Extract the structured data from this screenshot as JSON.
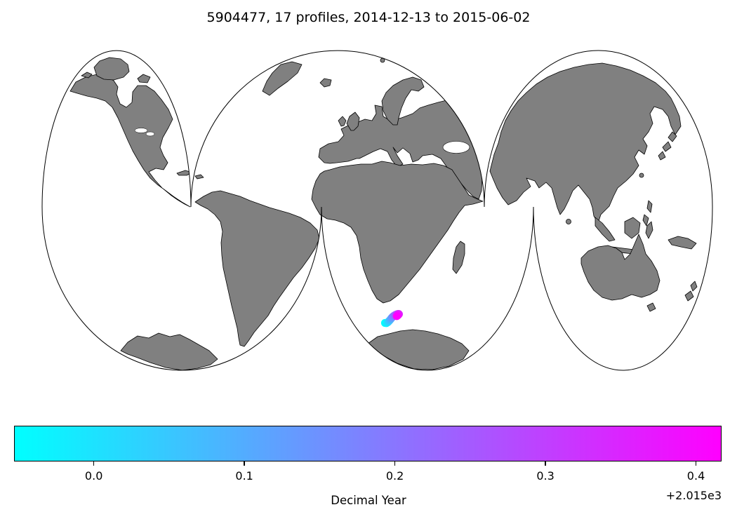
{
  "title": "5904477, 17 profiles, 2014-12-13 to 2015-06-02",
  "chart_data": {
    "type": "scatter",
    "title": "5904477, 17 profiles, 2014-12-13 to 2015-06-02",
    "float_id": "5904477",
    "n_profiles": 17,
    "date_range": "2014-12-13 to 2015-06-02",
    "projection": "interrupted world map, gray land, white ocean",
    "land_color": "#808080",
    "ocean_color": "#ffffff",
    "colorbar": {
      "label": "Decimal Year",
      "offset_text": "+2.015e3",
      "vmin": -0.053,
      "vmax": 0.417,
      "ticks": [
        0.0,
        0.1,
        0.2,
        0.3,
        0.4
      ],
      "tick_labels": [
        "0.0",
        "0.1",
        "0.2",
        "0.3",
        "0.4"
      ],
      "cmap": "cool",
      "cmap_start": "#00ffff",
      "cmap_end": "#ff00ff",
      "orientation": "horizontal"
    },
    "series": [
      {
        "name": "profile-positions",
        "note": "x,y are pixel positions on map (Southern Ocean south of Africa); v is decimal-year offset from 2015",
        "points": [
          {
            "x": 548.5,
            "y": 460.5,
            "v": -0.053
          },
          {
            "x": 550.5,
            "y": 460.8,
            "v": -0.024
          },
          {
            "x": 552.5,
            "y": 459.6,
            "v": 0.006
          },
          {
            "x": 554.0,
            "y": 458.0,
            "v": 0.035
          },
          {
            "x": 555.5,
            "y": 456.4,
            "v": 0.065
          },
          {
            "x": 556.8,
            "y": 454.8,
            "v": 0.094
          },
          {
            "x": 558.0,
            "y": 453.2,
            "v": 0.123
          },
          {
            "x": 559.3,
            "y": 451.8,
            "v": 0.153
          },
          {
            "x": 560.8,
            "y": 450.6,
            "v": 0.182
          },
          {
            "x": 562.3,
            "y": 449.6,
            "v": 0.212
          },
          {
            "x": 563.8,
            "y": 448.8,
            "v": 0.241
          },
          {
            "x": 565.2,
            "y": 448.2,
            "v": 0.27
          },
          {
            "x": 566.5,
            "y": 447.8,
            "v": 0.3
          },
          {
            "x": 567.6,
            "y": 447.6,
            "v": 0.329
          },
          {
            "x": 568.4,
            "y": 447.9,
            "v": 0.359
          },
          {
            "x": 567.0,
            "y": 449.6,
            "v": 0.388
          },
          {
            "x": 565.3,
            "y": 450.8,
            "v": 0.417
          }
        ]
      }
    ]
  }
}
